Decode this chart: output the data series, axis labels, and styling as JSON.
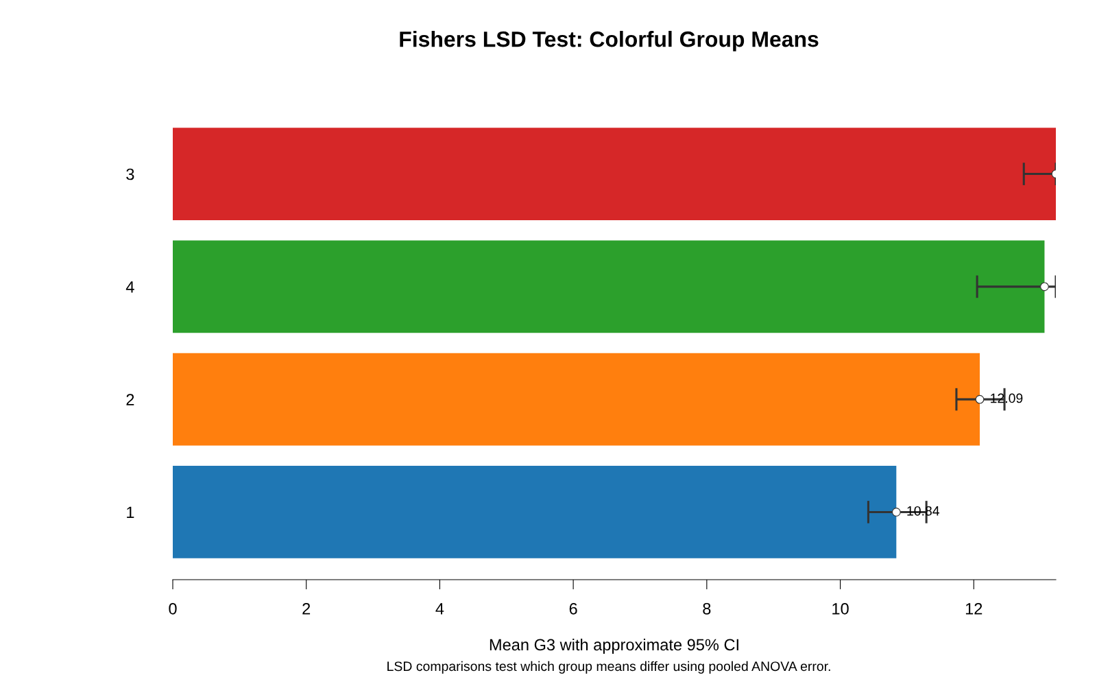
{
  "chart_data": {
    "type": "bar",
    "orientation": "horizontal",
    "title": "Fishers LSD Test: Colorful Group Means",
    "xlabel": "Mean G3 with approximate 95% CI",
    "annotations": [
      "LSD comparisons test which group means differ using pooled ANOVA error."
    ],
    "categories": [
      "3",
      "4",
      "2",
      "1"
    ],
    "values": [
      13.23,
      13.06,
      12.09,
      10.84
    ],
    "colors": [
      "#d62728",
      "#2ca02c",
      "#ff7f0e",
      "#1f77b4"
    ],
    "errors": [
      [
        12.75,
        13.23
      ],
      [
        12.05,
        13.23
      ],
      [
        11.74,
        12.46
      ],
      [
        10.42,
        11.29
      ]
    ],
    "value_labels": [
      null,
      null,
      "12.09",
      "10.84"
    ],
    "series": [
      {
        "type": "scatter",
        "marker": "circle",
        "color": "#ffffff",
        "values": [
          13.23,
          13.06,
          12.09,
          10.84
        ]
      }
    ],
    "xlim": [
      0,
      13.23
    ],
    "xticks": [
      0,
      2,
      4,
      6,
      8,
      10,
      12
    ],
    "grid": false,
    "legend": false
  }
}
